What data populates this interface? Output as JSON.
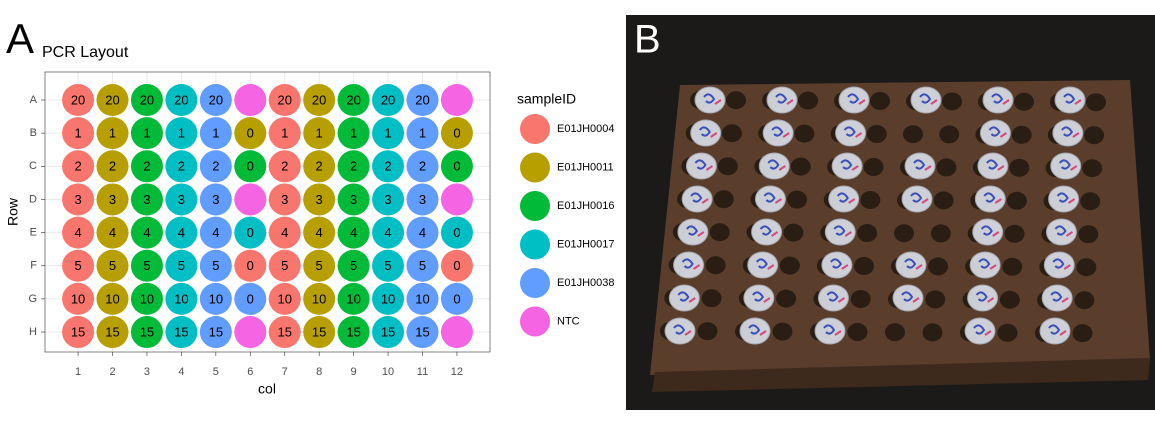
{
  "chart_data": {
    "type": "scatter",
    "panel_label": "A",
    "title": "PCR Layout",
    "xlabel": "col",
    "ylabel": "Row",
    "legend_title": "sampleID",
    "legend_position": "right",
    "grid": true,
    "xlim": [
      0.04,
      12.96
    ],
    "xticks": [
      1,
      2,
      3,
      4,
      5,
      6,
      7,
      8,
      9,
      10,
      11,
      12
    ],
    "y_categories": [
      "A",
      "B",
      "C",
      "D",
      "E",
      "F",
      "G",
      "H"
    ],
    "series": [
      {
        "name": "E01JH0004",
        "color": "#F8766D",
        "x": [
          1,
          1,
          1,
          1,
          1,
          1,
          1,
          1,
          7,
          7,
          7,
          7,
          7,
          7,
          7,
          7,
          6,
          12
        ],
        "y": [
          "A",
          "B",
          "C",
          "D",
          "E",
          "F",
          "G",
          "H",
          "A",
          "B",
          "C",
          "D",
          "E",
          "F",
          "G",
          "H",
          "F",
          "F"
        ],
        "labels": [
          20,
          1,
          2,
          3,
          4,
          5,
          10,
          15,
          20,
          1,
          2,
          3,
          4,
          5,
          10,
          15,
          0,
          0
        ]
      },
      {
        "name": "E01JH0011",
        "color": "#B79F00",
        "x": [
          2,
          2,
          2,
          2,
          2,
          2,
          2,
          2,
          8,
          8,
          8,
          8,
          8,
          8,
          8,
          8,
          6,
          12
        ],
        "y": [
          "A",
          "B",
          "C",
          "D",
          "E",
          "F",
          "G",
          "H",
          "A",
          "B",
          "C",
          "D",
          "E",
          "F",
          "G",
          "H",
          "B",
          "B"
        ],
        "labels": [
          20,
          1,
          2,
          3,
          4,
          5,
          10,
          15,
          20,
          1,
          2,
          3,
          4,
          5,
          10,
          15,
          0,
          0
        ]
      },
      {
        "name": "E01JH0016",
        "color": "#00BA38",
        "x": [
          3,
          3,
          3,
          3,
          3,
          3,
          3,
          3,
          9,
          9,
          9,
          9,
          9,
          9,
          9,
          9,
          6,
          12
        ],
        "y": [
          "A",
          "B",
          "C",
          "D",
          "E",
          "F",
          "G",
          "H",
          "A",
          "B",
          "C",
          "D",
          "E",
          "F",
          "G",
          "H",
          "C",
          "C"
        ],
        "labels": [
          20,
          1,
          2,
          3,
          4,
          5,
          10,
          15,
          20,
          1,
          2,
          3,
          4,
          5,
          10,
          15,
          0,
          0
        ]
      },
      {
        "name": "E01JH0017",
        "color": "#00BFC4",
        "x": [
          4,
          4,
          4,
          4,
          4,
          4,
          4,
          4,
          10,
          10,
          10,
          10,
          10,
          10,
          10,
          10,
          6,
          12
        ],
        "y": [
          "A",
          "B",
          "C",
          "D",
          "E",
          "F",
          "G",
          "H",
          "A",
          "B",
          "C",
          "D",
          "E",
          "F",
          "G",
          "H",
          "E",
          "E"
        ],
        "labels": [
          20,
          1,
          2,
          3,
          4,
          5,
          10,
          15,
          20,
          1,
          2,
          3,
          4,
          5,
          10,
          15,
          0,
          0
        ]
      },
      {
        "name": "E01JH0038",
        "color": "#619CFF",
        "x": [
          5,
          5,
          5,
          5,
          5,
          5,
          5,
          5,
          11,
          11,
          11,
          11,
          11,
          11,
          11,
          11,
          6,
          12
        ],
        "y": [
          "A",
          "B",
          "C",
          "D",
          "E",
          "F",
          "G",
          "H",
          "A",
          "B",
          "C",
          "D",
          "E",
          "F",
          "G",
          "H",
          "G",
          "G"
        ],
        "labels": [
          20,
          1,
          2,
          3,
          4,
          5,
          10,
          15,
          20,
          1,
          2,
          3,
          4,
          5,
          10,
          15,
          0,
          0
        ]
      },
      {
        "name": "NTC",
        "color": "#F564E3",
        "x": [
          6,
          6,
          6,
          12,
          12,
          12
        ],
        "y": [
          "A",
          "D",
          "H",
          "A",
          "D",
          "H"
        ]
      }
    ]
  },
  "photo": {
    "panel_label": "B"
  }
}
